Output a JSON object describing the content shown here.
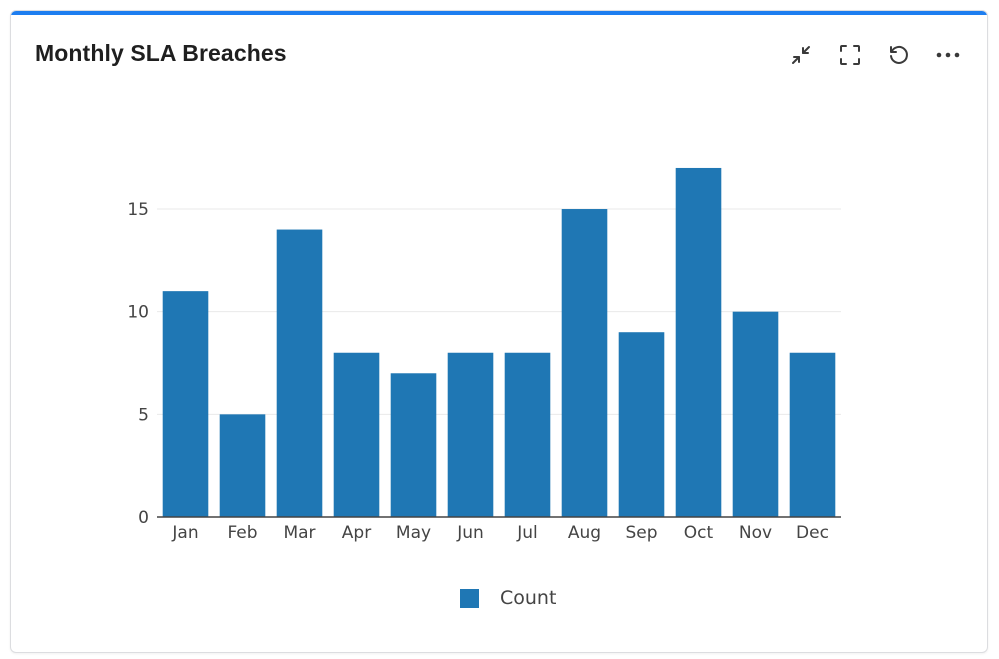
{
  "widget": {
    "title": "Monthly SLA Breaches",
    "accent_color": "#1e7ef0",
    "toolbar": [
      {
        "icon": "collapse-icon",
        "label": "Collapse"
      },
      {
        "icon": "fullscreen-icon",
        "label": "Fullscreen"
      },
      {
        "icon": "refresh-icon",
        "label": "Refresh"
      },
      {
        "icon": "more-icon",
        "label": "More"
      }
    ]
  },
  "chart_data": {
    "type": "bar",
    "title": "",
    "xlabel": "",
    "ylabel": "",
    "categories": [
      "Jan",
      "Feb",
      "Mar",
      "Apr",
      "May",
      "Jun",
      "Jul",
      "Aug",
      "Sep",
      "Oct",
      "Nov",
      "Dec"
    ],
    "series": [
      {
        "name": "Count",
        "color": "#1f77b4",
        "values": [
          11,
          5,
          14,
          8,
          7,
          8,
          8,
          15,
          9,
          17,
          10,
          8
        ]
      }
    ],
    "yticks": [
      0,
      5,
      10,
      15
    ],
    "ylim": [
      0,
      18.8
    ],
    "grid": true,
    "legend_position": "bottom-center"
  }
}
